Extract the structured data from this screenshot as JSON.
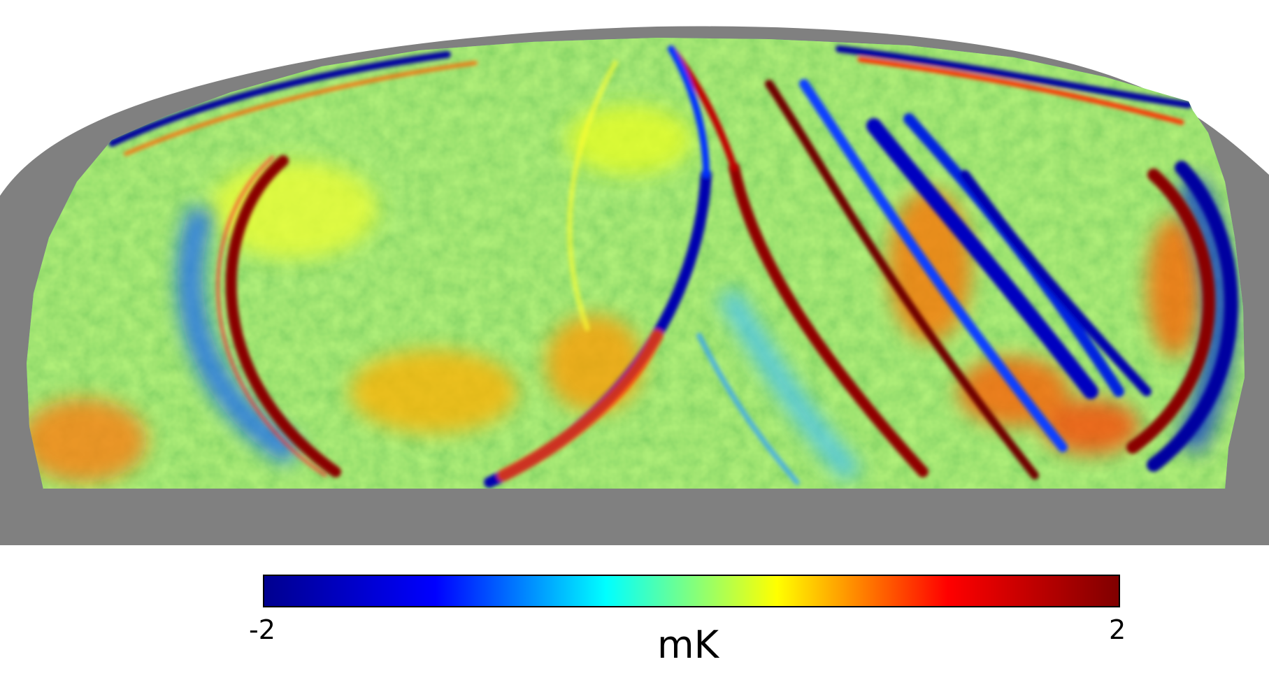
{
  "colorbar": {
    "min_label": "-2",
    "max_label": "2",
    "unit": "mK",
    "min_value": -2,
    "max_value": 2,
    "colormap": "jet",
    "stops": [
      "#00008f",
      "#0000ff",
      "#00ffff",
      "#ffff00",
      "#ff0000",
      "#800000"
    ]
  },
  "map": {
    "projection": "mollweide",
    "masked_color": "#808080",
    "background_color": "#ffffff"
  }
}
